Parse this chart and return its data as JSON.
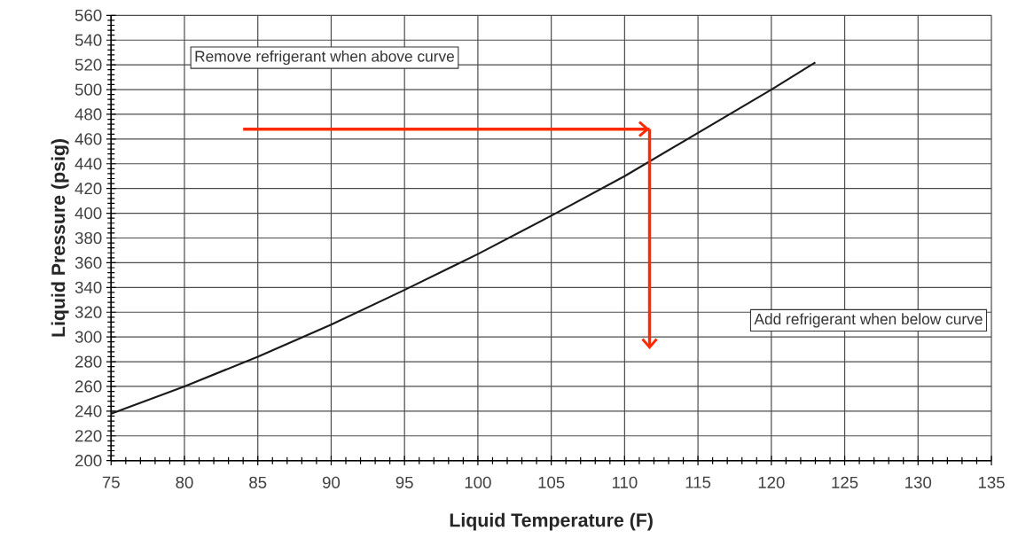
{
  "chart_data": {
    "type": "line",
    "xlabel": "Liquid Temperature (F)",
    "ylabel": "Liquid Pressure (psig)",
    "xlim": [
      75,
      135
    ],
    "ylim": [
      200,
      560
    ],
    "xticks": [
      75,
      80,
      85,
      90,
      95,
      100,
      105,
      110,
      115,
      120,
      125,
      130,
      135
    ],
    "yticks": [
      200,
      220,
      240,
      260,
      280,
      300,
      320,
      340,
      360,
      380,
      400,
      420,
      440,
      460,
      480,
      500,
      520,
      540,
      560
    ],
    "grid": true,
    "marker": "none",
    "line_style": "solid",
    "annotations": [
      "Remove refrigerant when above curve",
      "Add refrigerant when below curve"
    ],
    "series": [
      {
        "color": "#1a1a1a",
        "x": [
          75,
          80,
          85,
          90,
          95,
          100,
          105,
          110,
          115,
          120,
          123
        ],
        "values": [
          238,
          260,
          284,
          310,
          338,
          367,
          398,
          430,
          465,
          500,
          522
        ]
      },
      {
        "color": "#ff2a00",
        "x": [
          84,
          111.7
        ],
        "values": [
          468,
          468
        ]
      }
    ]
  }
}
